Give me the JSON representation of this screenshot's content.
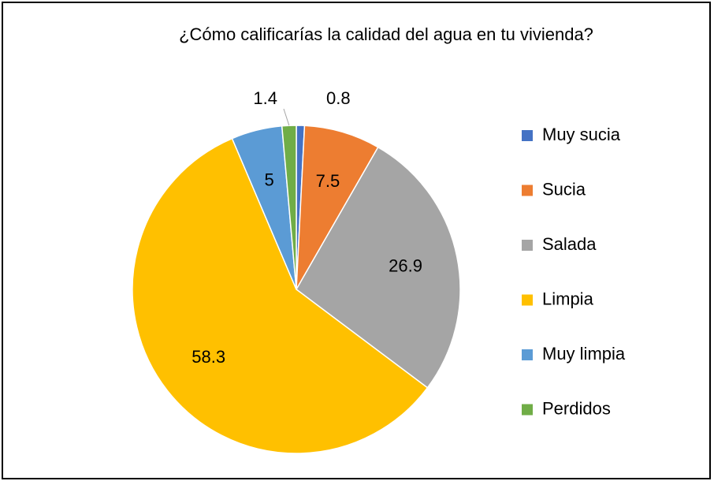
{
  "chart_data": {
    "type": "pie",
    "title": "¿Cómo calificarías la calidad del agua en tu vivienda?",
    "categories": [
      "Muy sucia",
      "Sucia",
      "Salada",
      "Limpia",
      "Muy limpia",
      "Perdidos"
    ],
    "values": [
      0.8,
      7.5,
      26.9,
      58.3,
      5,
      1.4
    ],
    "colors": [
      "#4472c4",
      "#ed7d31",
      "#a5a5a5",
      "#ffc000",
      "#5b9bd5",
      "#70ad47"
    ],
    "legend": "right"
  }
}
